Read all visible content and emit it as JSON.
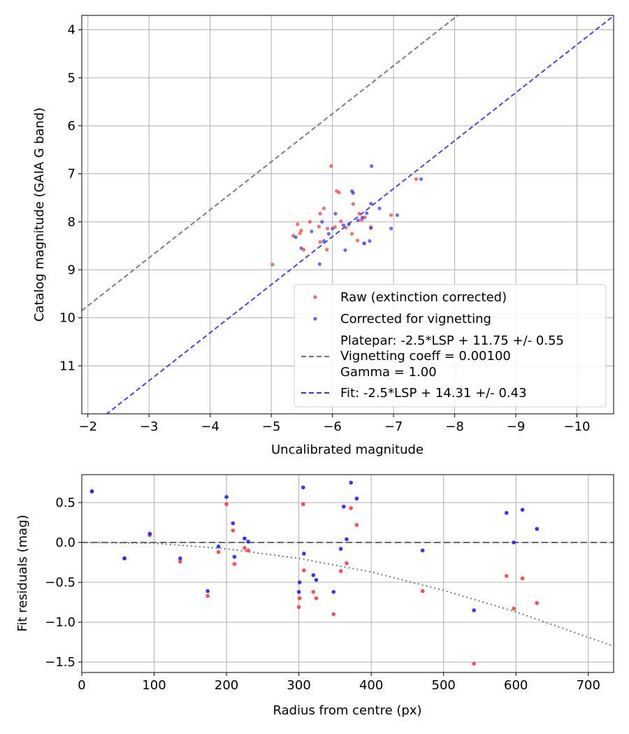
{
  "chart_data": [
    {
      "type": "scatter",
      "xlabel": "Uncalibrated magnitude",
      "ylabel": "Catalog magnitude (GAIA G band)",
      "xlim": [
        -1.9,
        -10.6
      ],
      "ylim": [
        12.0,
        3.7
      ],
      "x_inverted": true,
      "y_inverted": true,
      "xticks": [
        -2,
        -3,
        -4,
        -5,
        -6,
        -7,
        -8,
        -9,
        -10
      ],
      "xtick_labels": [
        "−2",
        "−3",
        "−4",
        "−5",
        "−6",
        "−7",
        "−8",
        "−9",
        "−10"
      ],
      "yticks": [
        4,
        5,
        6,
        7,
        8,
        9,
        10,
        11
      ],
      "ytick_labels": [
        "4",
        "5",
        "6",
        "7",
        "8",
        "9",
        "10",
        "11"
      ],
      "grid": true,
      "legend_position": "lower-right",
      "series": [
        {
          "name": "Raw (extinction corrected)",
          "kind": "scatter",
          "color": "#ff3b3b",
          "points": [
            [
              -5.02,
              8.89
            ],
            [
              -5.36,
              8.29
            ],
            [
              -5.43,
              8.05
            ],
            [
              -5.47,
              8.24
            ],
            [
              -5.49,
              8.18
            ],
            [
              -5.53,
              8.58
            ],
            [
              -5.63,
              8.0
            ],
            [
              -5.78,
              8.1
            ],
            [
              -5.8,
              8.42
            ],
            [
              -5.8,
              7.83
            ],
            [
              -5.86,
              7.72
            ],
            [
              -5.91,
              8.58
            ],
            [
              -5.92,
              8.14
            ],
            [
              -5.98,
              6.84
            ],
            [
              -6.04,
              8.11
            ],
            [
              -6.07,
              7.36
            ],
            [
              -6.11,
              7.39
            ],
            [
              -6.14,
              7.99
            ],
            [
              -6.22,
              8.12
            ],
            [
              -6.32,
              8.25
            ],
            [
              -6.34,
              7.63
            ],
            [
              -6.41,
              8.39
            ],
            [
              -6.44,
              7.83
            ],
            [
              -6.48,
              7.96
            ],
            [
              -6.52,
              8.45
            ],
            [
              -6.53,
              7.91
            ],
            [
              -6.63,
              8.11
            ],
            [
              -6.96,
              7.86
            ],
            [
              -7.37,
              7.11
            ]
          ]
        },
        {
          "name": "Corrected for vignetting",
          "kind": "scatter",
          "color": "#3b3bff",
          "points": [
            [
              -5.4,
              8.32
            ],
            [
              -5.49,
              8.55
            ],
            [
              -5.66,
              8.2
            ],
            [
              -5.79,
              8.88
            ],
            [
              -5.83,
              8.0
            ],
            [
              -5.86,
              8.4
            ],
            [
              -5.94,
              8.25
            ],
            [
              -6.0,
              8.14
            ],
            [
              -6.05,
              7.83
            ],
            [
              -6.18,
              8.07
            ],
            [
              -6.21,
              8.59
            ],
            [
              -6.27,
              8.05
            ],
            [
              -6.32,
              7.36
            ],
            [
              -6.34,
              7.4
            ],
            [
              -6.42,
              7.97
            ],
            [
              -6.49,
              7.91
            ],
            [
              -6.52,
              8.45
            ],
            [
              -6.56,
              7.82
            ],
            [
              -6.61,
              8.4
            ],
            [
              -6.63,
              8.13
            ],
            [
              -6.63,
              7.62
            ],
            [
              -6.64,
              6.84
            ],
            [
              -6.77,
              7.72
            ],
            [
              -6.96,
              8.14
            ],
            [
              -7.06,
              7.86
            ],
            [
              -7.45,
              7.11
            ]
          ]
        }
      ],
      "lines": [
        {
          "name": "Platepar: -2.5*LSP + 11.75 +/- 0.55\nVignetting coeff = 0.00100\nGamma = 1.00",
          "legend_lines": [
            "Platepar: -2.5*LSP + 11.75 +/- 0.55",
            "Vignetting coeff = 0.00100",
            "Gamma = 1.00"
          ],
          "style": "dashed",
          "color": "#777777",
          "slope": 1,
          "intercept": 11.75
        },
        {
          "name": "Fit: -2.5*LSP + 14.31 +/- 0.43",
          "legend_lines": [
            "Fit: -2.5*LSP + 14.31 +/- 0.43"
          ],
          "style": "dashed",
          "color": "#3b3bf0",
          "slope": 1,
          "intercept": 14.31
        }
      ]
    },
    {
      "type": "scatter",
      "xlabel": "Radius from centre (px)",
      "ylabel": "Fit residuals (mag)",
      "xlim": [
        0,
        735
      ],
      "ylim": [
        -1.63,
        0.85
      ],
      "xticks": [
        0,
        100,
        200,
        300,
        400,
        500,
        600,
        700
      ],
      "xtick_labels": [
        "0",
        "100",
        "200",
        "300",
        "400",
        "500",
        "600",
        "700"
      ],
      "yticks": [
        0.5,
        0.0,
        -0.5,
        -1.0,
        -1.5
      ],
      "ytick_labels": [
        "0.5",
        "0.0",
        "−0.5",
        "−1.0",
        "−1.5"
      ],
      "grid": true,
      "series": [
        {
          "name": "",
          "kind": "scatter",
          "color": "#ff3b3b",
          "points": [
            [
              14,
              0.64
            ],
            [
              59,
              -0.2
            ],
            [
              94,
              0.09
            ],
            [
              136,
              -0.24
            ],
            [
              174,
              -0.67
            ],
            [
              189,
              -0.12
            ],
            [
              200,
              0.48
            ],
            [
              209,
              0.15
            ],
            [
              211,
              -0.27
            ],
            [
              225,
              -0.07
            ],
            [
              230,
              -0.1
            ],
            [
              300,
              -0.81
            ],
            [
              301,
              -0.7
            ],
            [
              306,
              0.48
            ],
            [
              307,
              -0.35
            ],
            [
              320,
              -0.62
            ],
            [
              324,
              -0.7
            ],
            [
              348,
              -0.9
            ],
            [
              358,
              -0.36
            ],
            [
              366,
              -0.26
            ],
            [
              372,
              0.43
            ],
            [
              380,
              0.22
            ],
            [
              471,
              -0.61
            ],
            [
              542,
              -1.52
            ],
            [
              587,
              -0.42
            ],
            [
              597,
              -0.83
            ],
            [
              609,
              -0.45
            ],
            [
              629,
              -0.76
            ]
          ]
        },
        {
          "name": "",
          "kind": "scatter",
          "color": "#1f1fff",
          "points": [
            [
              14,
              0.64
            ],
            [
              59,
              -0.2
            ],
            [
              94,
              0.11
            ],
            [
              136,
              -0.2
            ],
            [
              174,
              -0.61
            ],
            [
              189,
              -0.05
            ],
            [
              200,
              0.57
            ],
            [
              209,
              0.24
            ],
            [
              211,
              -0.18
            ],
            [
              225,
              0.05
            ],
            [
              230,
              0.01
            ],
            [
              300,
              -0.62
            ],
            [
              301,
              -0.5
            ],
            [
              306,
              0.69
            ],
            [
              307,
              -0.14
            ],
            [
              320,
              -0.41
            ],
            [
              324,
              -0.47
            ],
            [
              348,
              -0.62
            ],
            [
              358,
              -0.08
            ],
            [
              362,
              0.45
            ],
            [
              366,
              0.04
            ],
            [
              372,
              0.75
            ],
            [
              380,
              0.55
            ],
            [
              471,
              -0.1
            ],
            [
              542,
              -0.85
            ],
            [
              587,
              0.37
            ],
            [
              597,
              0.0
            ],
            [
              609,
              0.41
            ],
            [
              629,
              0.17
            ]
          ]
        }
      ],
      "lines": [
        {
          "name": "",
          "style": "dashed",
          "color": "#555555",
          "y": 0.0
        },
        {
          "name": "",
          "style": "dotted",
          "color": "#777777",
          "curve": "vignetting",
          "points": [
            [
              0,
              0.0
            ],
            [
              100,
              -0.01
            ],
            [
              200,
              -0.08
            ],
            [
              300,
              -0.2
            ],
            [
              400,
              -0.37
            ],
            [
              500,
              -0.6
            ],
            [
              600,
              -0.87
            ],
            [
              735,
              -1.3
            ]
          ]
        }
      ]
    }
  ]
}
